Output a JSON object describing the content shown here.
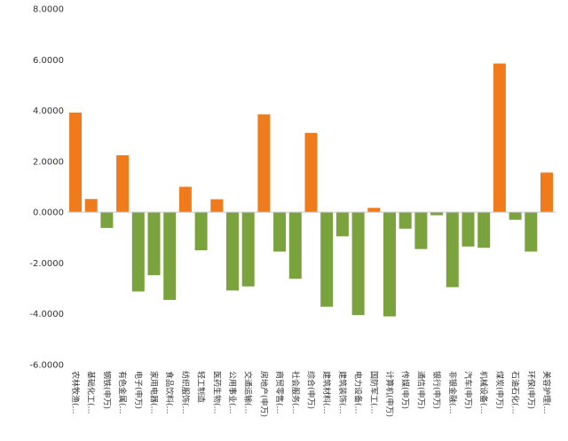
{
  "chart_data": {
    "type": "bar",
    "title": "",
    "xlabel": "",
    "ylabel": "",
    "ylim": [
      -6,
      8
    ],
    "yticks": [
      "8.0000",
      "6.0000",
      "4.0000",
      "2.0000",
      "0.0000",
      "-2.0000",
      "-4.0000",
      "-6.0000"
    ],
    "ytick_values": [
      8,
      6,
      4,
      2,
      0,
      -2,
      -4,
      -6
    ],
    "grid": false,
    "legend": "none",
    "colors": {
      "positive": "#f07b1c",
      "negative": "#7aa33d"
    },
    "categories": [
      "农林牧渔(…",
      "基础化工(…",
      "钢铁(申万)",
      "有色金属(…",
      "电子(申万)",
      "家用电器(…",
      "食品饮料(…",
      "纺织服饰(…",
      "轻工制造",
      "医药生物(…",
      "公用事业(…",
      "交通运输(…",
      "房地产(申万)",
      "商贸零售(…",
      "社会服务(…",
      "综合(申万)",
      "建筑材料(…",
      "建筑装饰(…",
      "电力设备(…",
      "国防军工(…",
      "计算机(申万)",
      "传媒(申万)",
      "通信(申万)",
      "银行(申万)",
      "非银金融(…",
      "汽车(申万)",
      "机械设备(…",
      "煤炭(申万)",
      "石油石化(…",
      "环保(申万)",
      "美容护理(…"
    ],
    "values": [
      3.92,
      0.52,
      -0.62,
      2.24,
      -3.12,
      -2.48,
      -3.45,
      1.0,
      -1.5,
      0.51,
      -3.08,
      -2.92,
      3.85,
      -1.55,
      -2.62,
      3.12,
      -3.72,
      -0.95,
      -4.05,
      0.17,
      -4.1,
      -0.65,
      -1.45,
      -0.12,
      -2.95,
      -1.35,
      -1.4,
      5.85,
      -0.3,
      -1.55,
      1.56
    ]
  }
}
